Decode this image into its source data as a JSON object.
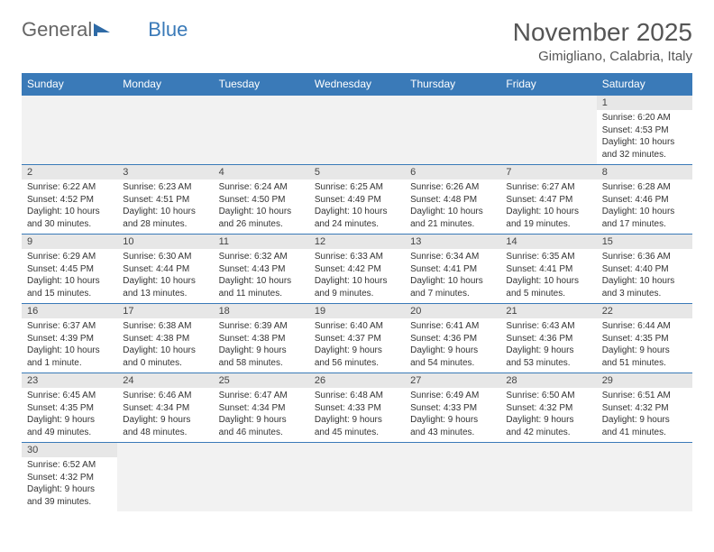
{
  "logo": {
    "part1": "General",
    "part2": "Blue"
  },
  "title": "November 2025",
  "location": "Gimigliano, Calabria, Italy",
  "colors": {
    "header_bg": "#3a7ab8",
    "header_text": "#ffffff",
    "daynum_bg": "#e7e7e7",
    "border": "#3a7ab8",
    "title_color": "#555555",
    "body_text": "#333333"
  },
  "weekdays": [
    "Sunday",
    "Monday",
    "Tuesday",
    "Wednesday",
    "Thursday",
    "Friday",
    "Saturday"
  ],
  "weeks": [
    [
      null,
      null,
      null,
      null,
      null,
      null,
      {
        "n": "1",
        "sr": "Sunrise: 6:20 AM",
        "ss": "Sunset: 4:53 PM",
        "d1": "Daylight: 10 hours",
        "d2": "and 32 minutes."
      }
    ],
    [
      {
        "n": "2",
        "sr": "Sunrise: 6:22 AM",
        "ss": "Sunset: 4:52 PM",
        "d1": "Daylight: 10 hours",
        "d2": "and 30 minutes."
      },
      {
        "n": "3",
        "sr": "Sunrise: 6:23 AM",
        "ss": "Sunset: 4:51 PM",
        "d1": "Daylight: 10 hours",
        "d2": "and 28 minutes."
      },
      {
        "n": "4",
        "sr": "Sunrise: 6:24 AM",
        "ss": "Sunset: 4:50 PM",
        "d1": "Daylight: 10 hours",
        "d2": "and 26 minutes."
      },
      {
        "n": "5",
        "sr": "Sunrise: 6:25 AM",
        "ss": "Sunset: 4:49 PM",
        "d1": "Daylight: 10 hours",
        "d2": "and 24 minutes."
      },
      {
        "n": "6",
        "sr": "Sunrise: 6:26 AM",
        "ss": "Sunset: 4:48 PM",
        "d1": "Daylight: 10 hours",
        "d2": "and 21 minutes."
      },
      {
        "n": "7",
        "sr": "Sunrise: 6:27 AM",
        "ss": "Sunset: 4:47 PM",
        "d1": "Daylight: 10 hours",
        "d2": "and 19 minutes."
      },
      {
        "n": "8",
        "sr": "Sunrise: 6:28 AM",
        "ss": "Sunset: 4:46 PM",
        "d1": "Daylight: 10 hours",
        "d2": "and 17 minutes."
      }
    ],
    [
      {
        "n": "9",
        "sr": "Sunrise: 6:29 AM",
        "ss": "Sunset: 4:45 PM",
        "d1": "Daylight: 10 hours",
        "d2": "and 15 minutes."
      },
      {
        "n": "10",
        "sr": "Sunrise: 6:30 AM",
        "ss": "Sunset: 4:44 PM",
        "d1": "Daylight: 10 hours",
        "d2": "and 13 minutes."
      },
      {
        "n": "11",
        "sr": "Sunrise: 6:32 AM",
        "ss": "Sunset: 4:43 PM",
        "d1": "Daylight: 10 hours",
        "d2": "and 11 minutes."
      },
      {
        "n": "12",
        "sr": "Sunrise: 6:33 AM",
        "ss": "Sunset: 4:42 PM",
        "d1": "Daylight: 10 hours",
        "d2": "and 9 minutes."
      },
      {
        "n": "13",
        "sr": "Sunrise: 6:34 AM",
        "ss": "Sunset: 4:41 PM",
        "d1": "Daylight: 10 hours",
        "d2": "and 7 minutes."
      },
      {
        "n": "14",
        "sr": "Sunrise: 6:35 AM",
        "ss": "Sunset: 4:41 PM",
        "d1": "Daylight: 10 hours",
        "d2": "and 5 minutes."
      },
      {
        "n": "15",
        "sr": "Sunrise: 6:36 AM",
        "ss": "Sunset: 4:40 PM",
        "d1": "Daylight: 10 hours",
        "d2": "and 3 minutes."
      }
    ],
    [
      {
        "n": "16",
        "sr": "Sunrise: 6:37 AM",
        "ss": "Sunset: 4:39 PM",
        "d1": "Daylight: 10 hours",
        "d2": "and 1 minute."
      },
      {
        "n": "17",
        "sr": "Sunrise: 6:38 AM",
        "ss": "Sunset: 4:38 PM",
        "d1": "Daylight: 10 hours",
        "d2": "and 0 minutes."
      },
      {
        "n": "18",
        "sr": "Sunrise: 6:39 AM",
        "ss": "Sunset: 4:38 PM",
        "d1": "Daylight: 9 hours",
        "d2": "and 58 minutes."
      },
      {
        "n": "19",
        "sr": "Sunrise: 6:40 AM",
        "ss": "Sunset: 4:37 PM",
        "d1": "Daylight: 9 hours",
        "d2": "and 56 minutes."
      },
      {
        "n": "20",
        "sr": "Sunrise: 6:41 AM",
        "ss": "Sunset: 4:36 PM",
        "d1": "Daylight: 9 hours",
        "d2": "and 54 minutes."
      },
      {
        "n": "21",
        "sr": "Sunrise: 6:43 AM",
        "ss": "Sunset: 4:36 PM",
        "d1": "Daylight: 9 hours",
        "d2": "and 53 minutes."
      },
      {
        "n": "22",
        "sr": "Sunrise: 6:44 AM",
        "ss": "Sunset: 4:35 PM",
        "d1": "Daylight: 9 hours",
        "d2": "and 51 minutes."
      }
    ],
    [
      {
        "n": "23",
        "sr": "Sunrise: 6:45 AM",
        "ss": "Sunset: 4:35 PM",
        "d1": "Daylight: 9 hours",
        "d2": "and 49 minutes."
      },
      {
        "n": "24",
        "sr": "Sunrise: 6:46 AM",
        "ss": "Sunset: 4:34 PM",
        "d1": "Daylight: 9 hours",
        "d2": "and 48 minutes."
      },
      {
        "n": "25",
        "sr": "Sunrise: 6:47 AM",
        "ss": "Sunset: 4:34 PM",
        "d1": "Daylight: 9 hours",
        "d2": "and 46 minutes."
      },
      {
        "n": "26",
        "sr": "Sunrise: 6:48 AM",
        "ss": "Sunset: 4:33 PM",
        "d1": "Daylight: 9 hours",
        "d2": "and 45 minutes."
      },
      {
        "n": "27",
        "sr": "Sunrise: 6:49 AM",
        "ss": "Sunset: 4:33 PM",
        "d1": "Daylight: 9 hours",
        "d2": "and 43 minutes."
      },
      {
        "n": "28",
        "sr": "Sunrise: 6:50 AM",
        "ss": "Sunset: 4:32 PM",
        "d1": "Daylight: 9 hours",
        "d2": "and 42 minutes."
      },
      {
        "n": "29",
        "sr": "Sunrise: 6:51 AM",
        "ss": "Sunset: 4:32 PM",
        "d1": "Daylight: 9 hours",
        "d2": "and 41 minutes."
      }
    ],
    [
      {
        "n": "30",
        "sr": "Sunrise: 6:52 AM",
        "ss": "Sunset: 4:32 PM",
        "d1": "Daylight: 9 hours",
        "d2": "and 39 minutes."
      },
      null,
      null,
      null,
      null,
      null,
      null
    ]
  ]
}
